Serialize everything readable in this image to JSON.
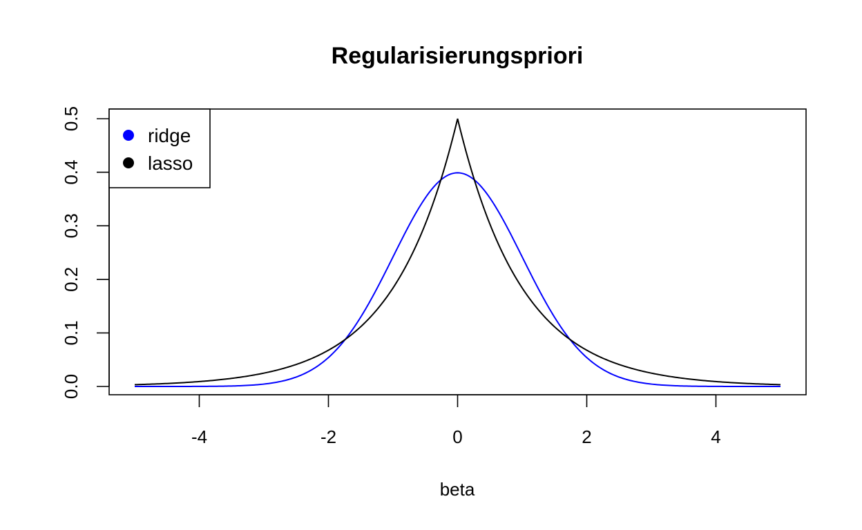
{
  "chart_data": {
    "type": "line",
    "title": "Regularisierungspriori",
    "xlabel": "beta",
    "ylabel": "",
    "xlim": [
      -5,
      5
    ],
    "ylim": [
      0,
      0.5
    ],
    "x_ticks": [
      "-4",
      "-2",
      "0",
      "2",
      "4"
    ],
    "y_ticks": [
      "0.0",
      "0.1",
      "0.2",
      "0.3",
      "0.4",
      "0.5"
    ],
    "grid": false,
    "legend_position": "top-left",
    "series": [
      {
        "name": "ridge",
        "color": "#0000ff",
        "x": [
          -5,
          -4.5,
          -4,
          -3.5,
          -3,
          -2.5,
          -2,
          -1.75,
          -1.5,
          -1.25,
          -1,
          -0.75,
          -0.5,
          -0.25,
          0,
          0.25,
          0.5,
          0.75,
          1,
          1.25,
          1.5,
          1.75,
          2,
          2.5,
          3,
          3.5,
          4,
          4.5,
          5
        ],
        "y": [
          0.0,
          0.0,
          0.0001,
          0.0009,
          0.0044,
          0.0175,
          0.054,
          0.0863,
          0.1295,
          0.1826,
          0.242,
          0.3011,
          0.3521,
          0.3867,
          0.3989,
          0.3867,
          0.3521,
          0.3011,
          0.242,
          0.1826,
          0.1295,
          0.0863,
          0.054,
          0.0175,
          0.0044,
          0.0009,
          0.0001,
          0.0,
          0.0
        ]
      },
      {
        "name": "lasso",
        "color": "#000000",
        "x": [
          -5,
          -4.5,
          -4,
          -3.5,
          -3,
          -2.5,
          -2,
          -1.75,
          -1.5,
          -1.25,
          -1,
          -0.75,
          -0.5,
          -0.25,
          0,
          0.25,
          0.5,
          0.75,
          1,
          1.25,
          1.5,
          1.75,
          2,
          2.5,
          3,
          3.5,
          4,
          4.5,
          5
        ],
        "y": [
          0.0034,
          0.0056,
          0.0092,
          0.0151,
          0.0249,
          0.041,
          0.0677,
          0.0869,
          0.1116,
          0.1433,
          0.1839,
          0.2362,
          0.3033,
          0.3894,
          0.5,
          0.3894,
          0.3033,
          0.2362,
          0.1839,
          0.1433,
          0.1116,
          0.0869,
          0.0677,
          0.041,
          0.0249,
          0.0151,
          0.0092,
          0.0056,
          0.0034
        ]
      }
    ]
  }
}
